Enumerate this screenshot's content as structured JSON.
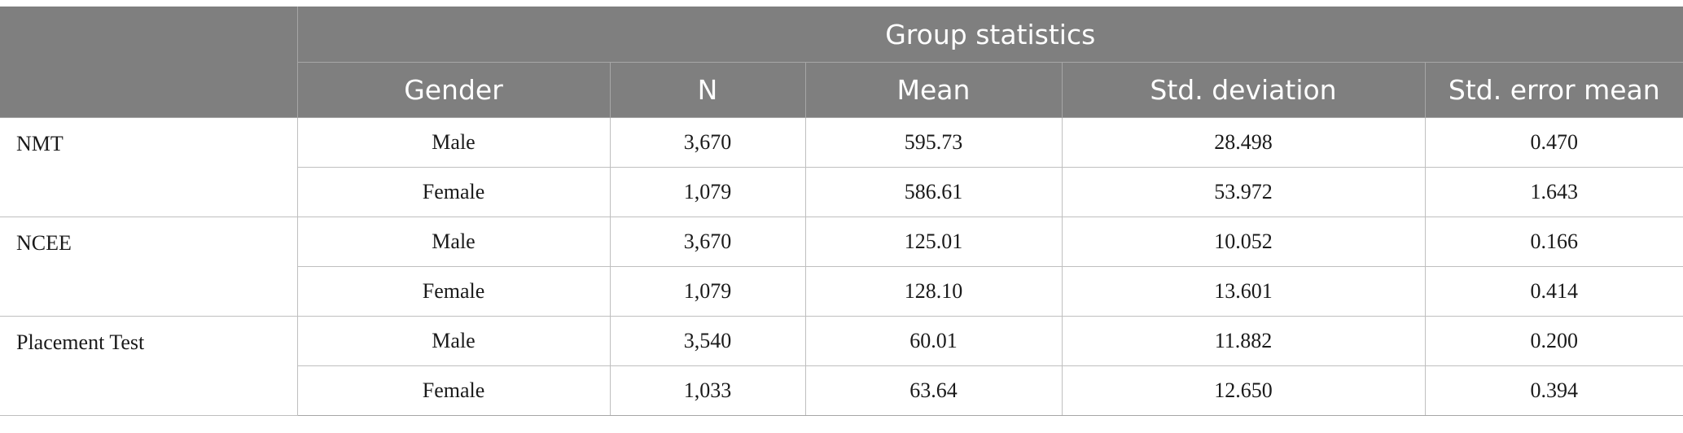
{
  "table": {
    "group_header": "Group statistics",
    "columns": [
      "Gender",
      "N",
      "Mean",
      "Std. deviation",
      "Std. error mean"
    ],
    "groups": [
      {
        "variable": "NMT",
        "rows": [
          {
            "gender": "Male",
            "n": "3,670",
            "mean": "595.73",
            "sd": "28.498",
            "se": "0.470"
          },
          {
            "gender": "Female",
            "n": "1,079",
            "mean": "586.61",
            "sd": "53.972",
            "se": "1.643"
          }
        ]
      },
      {
        "variable": "NCEE",
        "rows": [
          {
            "gender": "Male",
            "n": "3,670",
            "mean": "125.01",
            "sd": "10.052",
            "se": "0.166"
          },
          {
            "gender": "Female",
            "n": "1,079",
            "mean": "128.10",
            "sd": "13.601",
            "se": "0.414"
          }
        ]
      },
      {
        "variable": "Placement Test",
        "rows": [
          {
            "gender": "Male",
            "n": "3,540",
            "mean": "60.01",
            "sd": "11.882",
            "se": "0.200"
          },
          {
            "gender": "Female",
            "n": "1,033",
            "mean": "63.64",
            "sd": "12.650",
            "se": "0.394"
          }
        ]
      }
    ]
  }
}
